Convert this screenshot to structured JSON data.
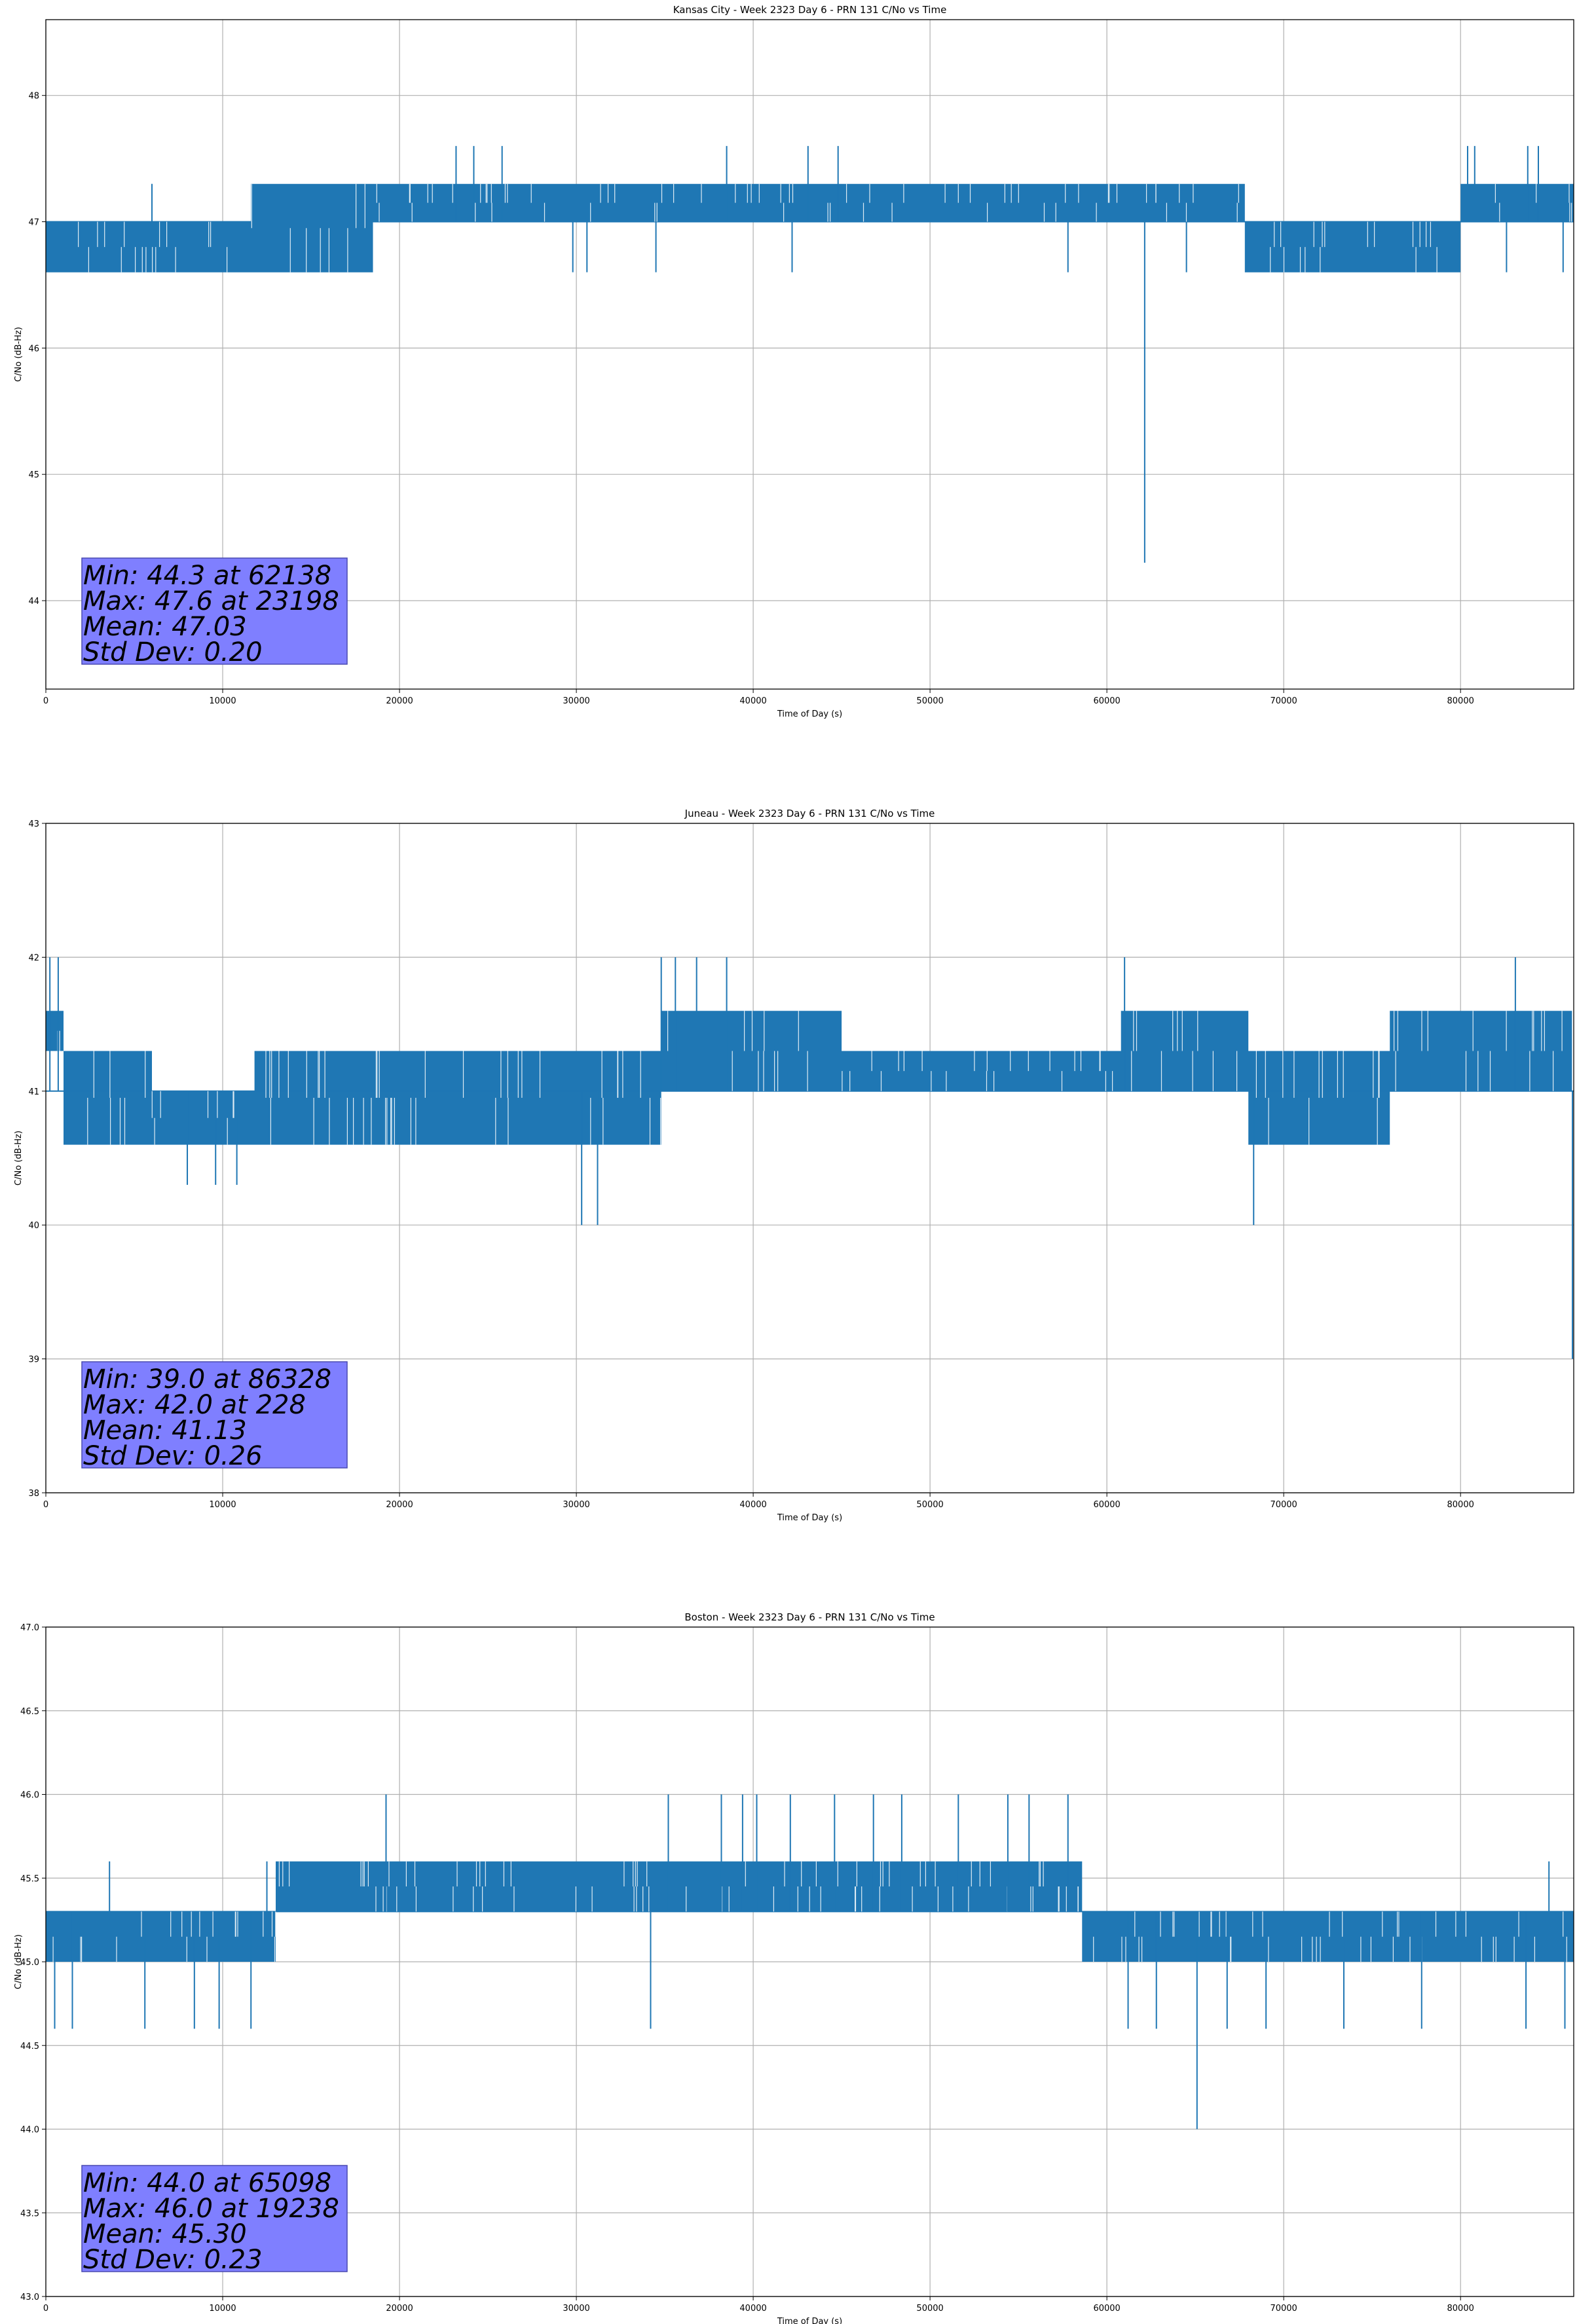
{
  "chart_data": [
    {
      "type": "line",
      "title": "Kansas City - Week 2323 Day 6 - PRN 131 C/No vs Time",
      "xlabel": "Time of Day (s)",
      "ylabel": "C/No (dB-Hz)",
      "xlim": [
        0,
        86400
      ],
      "ylim": [
        43.3,
        48.6
      ],
      "xticks": [
        0,
        10000,
        20000,
        30000,
        40000,
        50000,
        60000,
        70000,
        80000
      ],
      "yticks": [
        44,
        45,
        46,
        47,
        48
      ],
      "ytick_labels": [
        "44",
        "45",
        "46",
        "47",
        "48"
      ],
      "grid": true,
      "line_color": "#1f77b4",
      "baseline": 47.0,
      "segments": [
        {
          "x0": 0,
          "x1": 11600,
          "low": 46.6,
          "high": 47.0
        },
        {
          "x0": 11600,
          "x1": 18500,
          "low": 46.6,
          "high": 47.3
        },
        {
          "x0": 18500,
          "x1": 67800,
          "low": 47.0,
          "high": 47.3
        },
        {
          "x0": 67800,
          "x1": 80000,
          "low": 46.6,
          "high": 47.0
        },
        {
          "x0": 80000,
          "x1": 86400,
          "low": 47.0,
          "high": 47.3
        }
      ],
      "spikes_up": [
        [
          6000,
          47.3
        ],
        [
          23198,
          47.6
        ],
        [
          24200,
          47.6
        ],
        [
          25800,
          47.6
        ],
        [
          38500,
          47.6
        ],
        [
          43100,
          47.6
        ],
        [
          44800,
          47.6
        ],
        [
          80400,
          47.6
        ],
        [
          80800,
          47.6
        ],
        [
          83800,
          47.6
        ],
        [
          84400,
          47.6
        ]
      ],
      "spikes_down": [
        [
          29800,
          46.6
        ],
        [
          30600,
          46.6
        ],
        [
          34500,
          46.6
        ],
        [
          42200,
          46.6
        ],
        [
          57800,
          46.6
        ],
        [
          62138,
          44.3
        ],
        [
          64500,
          46.6
        ],
        [
          82600,
          46.6
        ],
        [
          85800,
          46.6
        ]
      ],
      "stats": [
        "Min: 44.3 at 62138",
        "Max: 47.6 at 23198",
        "Mean: 47.03",
        "Std Dev: 0.20"
      ]
    },
    {
      "type": "line",
      "title": "Juneau - Week 2323 Day 6 - PRN 131 C/No vs Time",
      "xlabel": "Time of Day (s)",
      "ylabel": "C/No (dB-Hz)",
      "xlim": [
        0,
        86400
      ],
      "ylim": [
        38,
        43
      ],
      "xticks": [
        0,
        10000,
        20000,
        30000,
        40000,
        50000,
        60000,
        70000,
        80000
      ],
      "yticks": [
        38,
        39,
        40,
        41,
        42,
        43
      ],
      "ytick_labels": [
        "38",
        "39",
        "40",
        "41",
        "42",
        "43"
      ],
      "grid": true,
      "line_color": "#1f77b4",
      "baseline": 41.0,
      "segments": [
        {
          "x0": 0,
          "x1": 1000,
          "low": 41.3,
          "high": 41.6
        },
        {
          "x0": 1000,
          "x1": 6000,
          "low": 40.6,
          "high": 41.3
        },
        {
          "x0": 6000,
          "x1": 11800,
          "low": 40.6,
          "high": 41.0
        },
        {
          "x0": 11800,
          "x1": 25000,
          "low": 40.6,
          "high": 41.3
        },
        {
          "x0": 25000,
          "x1": 34800,
          "low": 40.6,
          "high": 41.3
        },
        {
          "x0": 34800,
          "x1": 45000,
          "low": 41.0,
          "high": 41.6
        },
        {
          "x0": 45000,
          "x1": 60800,
          "low": 41.0,
          "high": 41.3
        },
        {
          "x0": 60800,
          "x1": 68000,
          "low": 41.0,
          "high": 41.6
        },
        {
          "x0": 68000,
          "x1": 76000,
          "low": 40.6,
          "high": 41.3
        },
        {
          "x0": 76000,
          "x1": 86300,
          "low": 41.0,
          "high": 41.6
        }
      ],
      "spikes_up": [
        [
          228,
          42.0
        ],
        [
          700,
          42.0
        ],
        [
          34800,
          42.0
        ],
        [
          35600,
          42.0
        ],
        [
          36800,
          42.0
        ],
        [
          38500,
          42.0
        ],
        [
          61000,
          42.0
        ],
        [
          83100,
          42.0
        ]
      ],
      "spikes_down": [
        [
          8000,
          40.3
        ],
        [
          9600,
          40.3
        ],
        [
          10800,
          40.3
        ],
        [
          30300,
          40.0
        ],
        [
          31200,
          40.0
        ],
        [
          68300,
          40.0
        ],
        [
          86328,
          39.0
        ]
      ],
      "stats": [
        "Min: 39.0 at 86328",
        "Max: 42.0 at 228",
        "Mean: 41.13",
        "Std Dev: 0.26"
      ]
    },
    {
      "type": "line",
      "title": "Boston - Week 2323 Day 6 - PRN 131 C/No vs Time",
      "xlabel": "Time of Day (s)",
      "ylabel": "C/No (dB-Hz)",
      "xlim": [
        0,
        86400
      ],
      "ylim": [
        43.0,
        47.0
      ],
      "xticks": [
        0,
        10000,
        20000,
        30000,
        40000,
        50000,
        60000,
        70000,
        80000
      ],
      "yticks": [
        43.0,
        43.5,
        44.0,
        44.5,
        45.0,
        45.5,
        46.0,
        46.5,
        47.0
      ],
      "ytick_labels": [
        "43.0",
        "43.5",
        "44.0",
        "44.5",
        "45.0",
        "45.5",
        "46.0",
        "46.5",
        "47.0"
      ],
      "grid": true,
      "line_color": "#1f77b4",
      "baseline": 45.3,
      "segments": [
        {
          "x0": 0,
          "x1": 13000,
          "low": 45.0,
          "high": 45.3
        },
        {
          "x0": 13000,
          "x1": 58600,
          "low": 45.3,
          "high": 45.6
        },
        {
          "x0": 58600,
          "x1": 86400,
          "low": 45.0,
          "high": 45.3
        }
      ],
      "spikes_up": [
        [
          3600,
          45.6
        ],
        [
          12500,
          45.6
        ],
        [
          19238,
          46.0
        ],
        [
          35200,
          46.0
        ],
        [
          38200,
          46.0
        ],
        [
          39400,
          46.0
        ],
        [
          40200,
          46.0
        ],
        [
          42100,
          46.0
        ],
        [
          44600,
          46.0
        ],
        [
          46800,
          46.0
        ],
        [
          48400,
          46.0
        ],
        [
          51600,
          46.0
        ],
        [
          54400,
          46.0
        ],
        [
          55600,
          46.0
        ],
        [
          57800,
          46.0
        ],
        [
          85000,
          45.6
        ]
      ],
      "spikes_down": [
        [
          500,
          44.6
        ],
        [
          1500,
          44.6
        ],
        [
          5600,
          44.6
        ],
        [
          8400,
          44.6
        ],
        [
          9800,
          44.6
        ],
        [
          11600,
          44.6
        ],
        [
          34200,
          44.6
        ],
        [
          61200,
          44.6
        ],
        [
          62800,
          44.6
        ],
        [
          65098,
          44.0
        ],
        [
          66800,
          44.6
        ],
        [
          69000,
          44.6
        ],
        [
          73400,
          44.6
        ],
        [
          77800,
          44.6
        ],
        [
          83700,
          44.6
        ],
        [
          85900,
          44.6
        ]
      ],
      "stats": [
        "Min: 44.0 at 65098",
        "Max: 46.0 at 19238",
        "Mean: 45.30",
        "Std Dev: 0.23"
      ]
    }
  ]
}
